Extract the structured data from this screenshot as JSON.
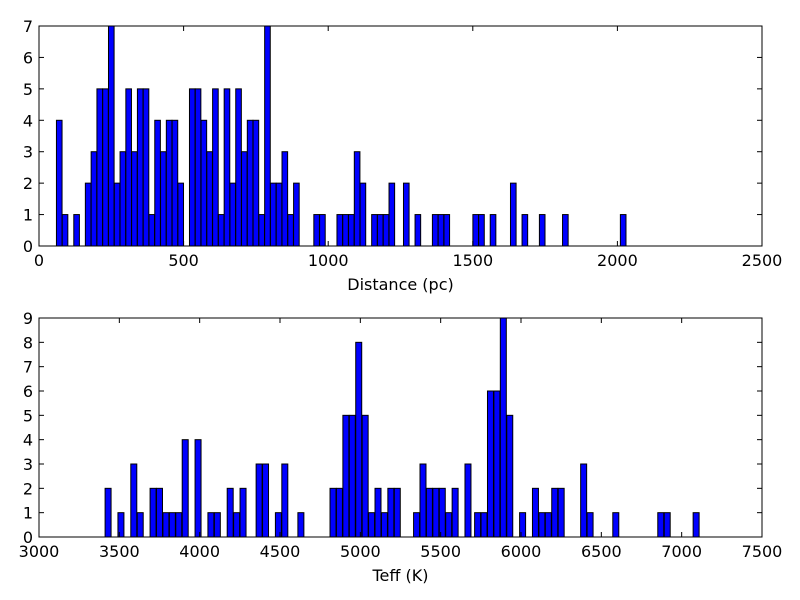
{
  "chart_data": [
    {
      "type": "bar",
      "subtype": "histogram",
      "xlabel": "Distance (pc)",
      "ylabel": "",
      "xlim": [
        0,
        2500
      ],
      "ylim": [
        0,
        7
      ],
      "xticks": [
        "0",
        "500",
        "1000",
        "1500",
        "2000",
        "2500"
      ],
      "yticks": [
        "0",
        "1",
        "2",
        "3",
        "4",
        "5",
        "6",
        "7"
      ],
      "bin_width": 19.4,
      "bar_color": "#0000ff",
      "edge_color": "#000000",
      "bars": [
        {
          "x": 70,
          "value": 4
        },
        {
          "x": 90,
          "value": 1
        },
        {
          "x": 130,
          "value": 1
        },
        {
          "x": 170,
          "value": 2
        },
        {
          "x": 190,
          "value": 3
        },
        {
          "x": 210,
          "value": 5
        },
        {
          "x": 230,
          "value": 5
        },
        {
          "x": 250,
          "value": 7
        },
        {
          "x": 270,
          "value": 2
        },
        {
          "x": 290,
          "value": 3
        },
        {
          "x": 310,
          "value": 5
        },
        {
          "x": 330,
          "value": 3
        },
        {
          "x": 350,
          "value": 5
        },
        {
          "x": 370,
          "value": 5
        },
        {
          "x": 390,
          "value": 1
        },
        {
          "x": 410,
          "value": 4
        },
        {
          "x": 430,
          "value": 3
        },
        {
          "x": 450,
          "value": 4
        },
        {
          "x": 470,
          "value": 4
        },
        {
          "x": 490,
          "value": 2
        },
        {
          "x": 530,
          "value": 5
        },
        {
          "x": 550,
          "value": 5
        },
        {
          "x": 570,
          "value": 4
        },
        {
          "x": 590,
          "value": 3
        },
        {
          "x": 610,
          "value": 5
        },
        {
          "x": 630,
          "value": 1
        },
        {
          "x": 650,
          "value": 5
        },
        {
          "x": 670,
          "value": 2
        },
        {
          "x": 690,
          "value": 5
        },
        {
          "x": 710,
          "value": 3
        },
        {
          "x": 730,
          "value": 4
        },
        {
          "x": 750,
          "value": 4
        },
        {
          "x": 770,
          "value": 1
        },
        {
          "x": 790,
          "value": 7
        },
        {
          "x": 810,
          "value": 2
        },
        {
          "x": 830,
          "value": 2
        },
        {
          "x": 850,
          "value": 3
        },
        {
          "x": 870,
          "value": 1
        },
        {
          "x": 890,
          "value": 2
        },
        {
          "x": 960,
          "value": 1
        },
        {
          "x": 980,
          "value": 1
        },
        {
          "x": 1040,
          "value": 1
        },
        {
          "x": 1060,
          "value": 1
        },
        {
          "x": 1080,
          "value": 1
        },
        {
          "x": 1100,
          "value": 3
        },
        {
          "x": 1120,
          "value": 2
        },
        {
          "x": 1160,
          "value": 1
        },
        {
          "x": 1180,
          "value": 1
        },
        {
          "x": 1200,
          "value": 1
        },
        {
          "x": 1220,
          "value": 2
        },
        {
          "x": 1270,
          "value": 2
        },
        {
          "x": 1310,
          "value": 1
        },
        {
          "x": 1370,
          "value": 1
        },
        {
          "x": 1390,
          "value": 1
        },
        {
          "x": 1410,
          "value": 1
        },
        {
          "x": 1510,
          "value": 1
        },
        {
          "x": 1530,
          "value": 1
        },
        {
          "x": 1570,
          "value": 1
        },
        {
          "x": 1640,
          "value": 2
        },
        {
          "x": 1680,
          "value": 1
        },
        {
          "x": 1740,
          "value": 1
        },
        {
          "x": 1820,
          "value": 1
        },
        {
          "x": 2020,
          "value": 1
        }
      ]
    },
    {
      "type": "bar",
      "subtype": "histogram",
      "xlabel": "Teff (K)",
      "ylabel": "",
      "xlim": [
        3000,
        7500
      ],
      "ylim": [
        0,
        9
      ],
      "xticks": [
        "3000",
        "3500",
        "4000",
        "4500",
        "5000",
        "5500",
        "6000",
        "6500",
        "7000",
        "7500"
      ],
      "yticks": [
        "0",
        "1",
        "2",
        "3",
        "4",
        "5",
        "6",
        "7",
        "8",
        "9"
      ],
      "bin_width": 37.3,
      "bar_color": "#0000ff",
      "edge_color": "#000000",
      "bars": [
        {
          "x": 3430,
          "value": 2
        },
        {
          "x": 3510,
          "value": 1
        },
        {
          "x": 3590,
          "value": 3
        },
        {
          "x": 3630,
          "value": 1
        },
        {
          "x": 3710,
          "value": 2
        },
        {
          "x": 3750,
          "value": 2
        },
        {
          "x": 3790,
          "value": 1
        },
        {
          "x": 3830,
          "value": 1
        },
        {
          "x": 3870,
          "value": 1
        },
        {
          "x": 3910,
          "value": 4
        },
        {
          "x": 3990,
          "value": 4
        },
        {
          "x": 4070,
          "value": 1
        },
        {
          "x": 4110,
          "value": 1
        },
        {
          "x": 4190,
          "value": 2
        },
        {
          "x": 4230,
          "value": 1
        },
        {
          "x": 4270,
          "value": 2
        },
        {
          "x": 4370,
          "value": 3
        },
        {
          "x": 4410,
          "value": 3
        },
        {
          "x": 4490,
          "value": 1
        },
        {
          "x": 4530,
          "value": 3
        },
        {
          "x": 4630,
          "value": 1
        },
        {
          "x": 4830,
          "value": 2
        },
        {
          "x": 4870,
          "value": 2
        },
        {
          "x": 4910,
          "value": 5
        },
        {
          "x": 4950,
          "value": 5
        },
        {
          "x": 4990,
          "value": 8
        },
        {
          "x": 5030,
          "value": 5
        },
        {
          "x": 5070,
          "value": 1
        },
        {
          "x": 5110,
          "value": 2
        },
        {
          "x": 5150,
          "value": 1
        },
        {
          "x": 5190,
          "value": 2
        },
        {
          "x": 5230,
          "value": 2
        },
        {
          "x": 5350,
          "value": 1
        },
        {
          "x": 5390,
          "value": 3
        },
        {
          "x": 5430,
          "value": 2
        },
        {
          "x": 5470,
          "value": 2
        },
        {
          "x": 5510,
          "value": 2
        },
        {
          "x": 5550,
          "value": 1
        },
        {
          "x": 5590,
          "value": 2
        },
        {
          "x": 5670,
          "value": 3
        },
        {
          "x": 5730,
          "value": 1
        },
        {
          "x": 5770,
          "value": 1
        },
        {
          "x": 5810,
          "value": 6
        },
        {
          "x": 5850,
          "value": 6
        },
        {
          "x": 5890,
          "value": 9
        },
        {
          "x": 5930,
          "value": 5
        },
        {
          "x": 6010,
          "value": 1
        },
        {
          "x": 6090,
          "value": 2
        },
        {
          "x": 6130,
          "value": 1
        },
        {
          "x": 6170,
          "value": 1
        },
        {
          "x": 6210,
          "value": 2
        },
        {
          "x": 6250,
          "value": 2
        },
        {
          "x": 6390,
          "value": 3
        },
        {
          "x": 6430,
          "value": 1
        },
        {
          "x": 6590,
          "value": 1
        },
        {
          "x": 6870,
          "value": 1
        },
        {
          "x": 6910,
          "value": 1
        },
        {
          "x": 7090,
          "value": 1
        }
      ]
    }
  ]
}
